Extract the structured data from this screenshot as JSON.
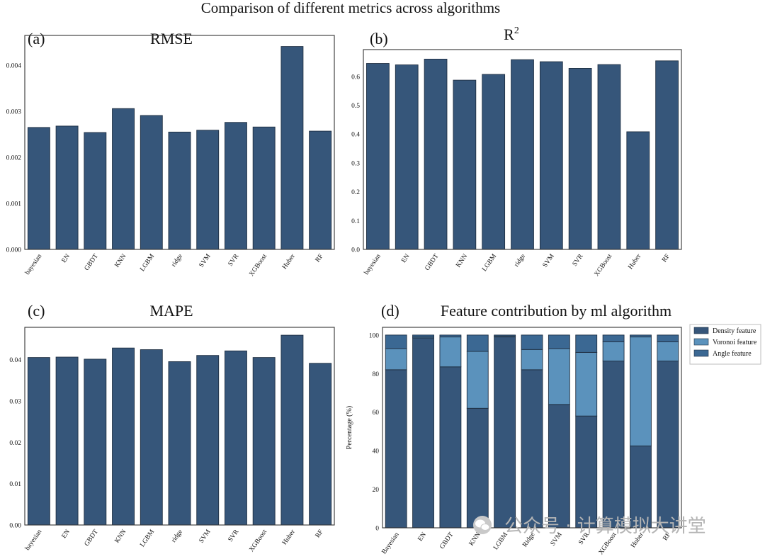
{
  "suptitle": "Comparison of different metrics across algorithms",
  "colors": {
    "bar": "#36567a",
    "bar_edge": "#1f2f42",
    "density": "#36567a",
    "voronoi": "#5b92bc",
    "angle": "#3b6893",
    "axis": "#333333"
  },
  "watermark": {
    "icon": "wechat-icon",
    "text": "公众号 · 计算模拟大讲堂"
  },
  "chart_data": [
    {
      "type": "bar",
      "panel_label": "(a)",
      "title": "RMSE",
      "categories": [
        "bayesian",
        "EN",
        "GBDT",
        "KNN",
        "LGBM",
        "ridge",
        "SVM",
        "SVR",
        "XGBoost",
        "Huber",
        "RF"
      ],
      "values": [
        0.00265,
        0.00268,
        0.00254,
        0.00306,
        0.00291,
        0.00255,
        0.00259,
        0.00276,
        0.00266,
        0.00441,
        0.00257
      ],
      "yticks": [
        "0.000",
        "0.001",
        "0.002",
        "0.003",
        "0.004"
      ],
      "ylim": [
        0,
        0.00465
      ],
      "xlabel": "",
      "ylabel": ""
    },
    {
      "type": "bar",
      "panel_label": "(b)",
      "title": "R",
      "title_sup": "2",
      "categories": [
        "bayesian",
        "EN",
        "GBDT",
        "KNN",
        "LGBM",
        "ridge",
        "SVM",
        "SVR",
        "XGBoost",
        "Huber",
        "RF"
      ],
      "values": [
        0.645,
        0.64,
        0.66,
        0.587,
        0.607,
        0.658,
        0.651,
        0.628,
        0.641,
        0.408,
        0.654
      ],
      "yticks": [
        "0.0",
        "0.1",
        "0.2",
        "0.3",
        "0.4",
        "0.5",
        "0.6"
      ],
      "ylim": [
        0,
        0.693
      ],
      "xlabel": "",
      "ylabel": ""
    },
    {
      "type": "bar",
      "panel_label": "(c)",
      "title": "MAPE",
      "categories": [
        "bayesian",
        "EN",
        "GBDT",
        "KNN",
        "LGBM",
        "ridge",
        "SVM",
        "SVR",
        "XGBoost",
        "Huber",
        "RF"
      ],
      "values": [
        0.0405,
        0.0406,
        0.0401,
        0.0428,
        0.0424,
        0.0395,
        0.041,
        0.0421,
        0.0405,
        0.0459,
        0.0391
      ],
      "yticks": [
        "0.00",
        "0.01",
        "0.02",
        "0.03",
        "0.04"
      ],
      "ylim": [
        0,
        0.0478
      ],
      "xlabel": "",
      "ylabel": ""
    },
    {
      "type": "bar",
      "stacked": true,
      "panel_label": "(d)",
      "title": "Feature contribution by ml algorithm",
      "categories": [
        "Bayesian",
        "EN",
        "GBDT",
        "KNN",
        "LGBM",
        "Ridge",
        "SVM",
        "SVR",
        "XGBoost",
        "Huber",
        "RF"
      ],
      "series": [
        {
          "name": "Density feature",
          "values": [
            82,
            98.5,
            83.5,
            62,
            99,
            82,
            64,
            58,
            86.5,
            42.5,
            86.5
          ]
        },
        {
          "name": "Voronoi feature",
          "values": [
            11,
            0.5,
            15.5,
            29.5,
            0.5,
            10.5,
            29,
            33,
            10,
            56.5,
            10
          ]
        },
        {
          "name": "Angle feature",
          "values": [
            7,
            1,
            1,
            8.5,
            0.5,
            7.5,
            7,
            9,
            3.5,
            1,
            3.5
          ]
        }
      ],
      "yticks": [
        "0",
        "20",
        "40",
        "60",
        "80",
        "100"
      ],
      "ylim": [
        0,
        104
      ],
      "ylabel": "Percentage (%)",
      "xlabel": "",
      "legend_position": "outside-top-right"
    }
  ]
}
